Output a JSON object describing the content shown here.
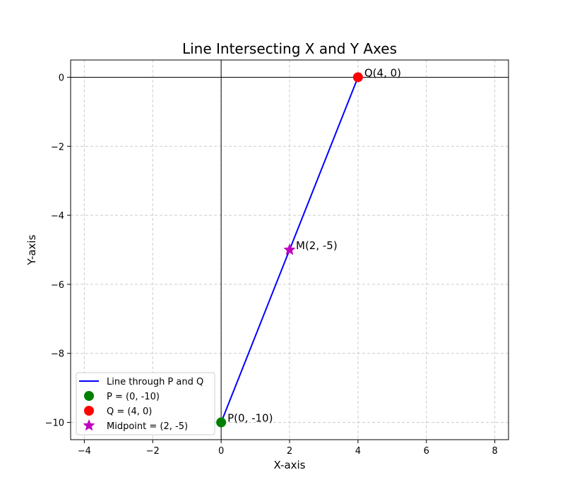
{
  "chart_data": {
    "type": "line",
    "title": "Line Intersecting X and Y Axes",
    "xlabel": "X-axis",
    "ylabel": "Y-axis",
    "xlim": [
      -4.4,
      8.4
    ],
    "ylim": [
      -10.5,
      0.5
    ],
    "xticks": [
      -4,
      -2,
      0,
      2,
      4,
      6,
      8
    ],
    "yticks": [
      0,
      -2,
      -4,
      -6,
      -8,
      -10
    ],
    "xtick_labels": [
      "−4",
      "−2",
      "0",
      "2",
      "4",
      "6",
      "8"
    ],
    "ytick_labels": [
      "0",
      "−2",
      "−4",
      "−6",
      "−8",
      "−10"
    ],
    "grid": true,
    "legend_position": "lower-left",
    "series": [
      {
        "name": "Line through P and Q",
        "kind": "line",
        "color": "#0000ff",
        "x": [
          0,
          4
        ],
        "y": [
          -10,
          0
        ]
      },
      {
        "name": "P = (0, -10)",
        "kind": "point",
        "marker": "circle",
        "color": "#008000",
        "x": [
          0
        ],
        "y": [
          -10
        ]
      },
      {
        "name": "Q = (4, 0)",
        "kind": "point",
        "marker": "circle",
        "color": "#ff0000",
        "x": [
          4
        ],
        "y": [
          0
        ]
      },
      {
        "name": "Midpoint = (2, -5)",
        "kind": "point",
        "marker": "star",
        "color": "#bf00bf",
        "x": [
          2
        ],
        "y": [
          -5
        ]
      }
    ],
    "annotations": [
      {
        "text": "P(0, -10)",
        "x": 0,
        "y": -10
      },
      {
        "text": "Q(4, 0)",
        "x": 4,
        "y": 0
      },
      {
        "text": "M(2, -5)",
        "x": 2,
        "y": -5
      }
    ]
  }
}
